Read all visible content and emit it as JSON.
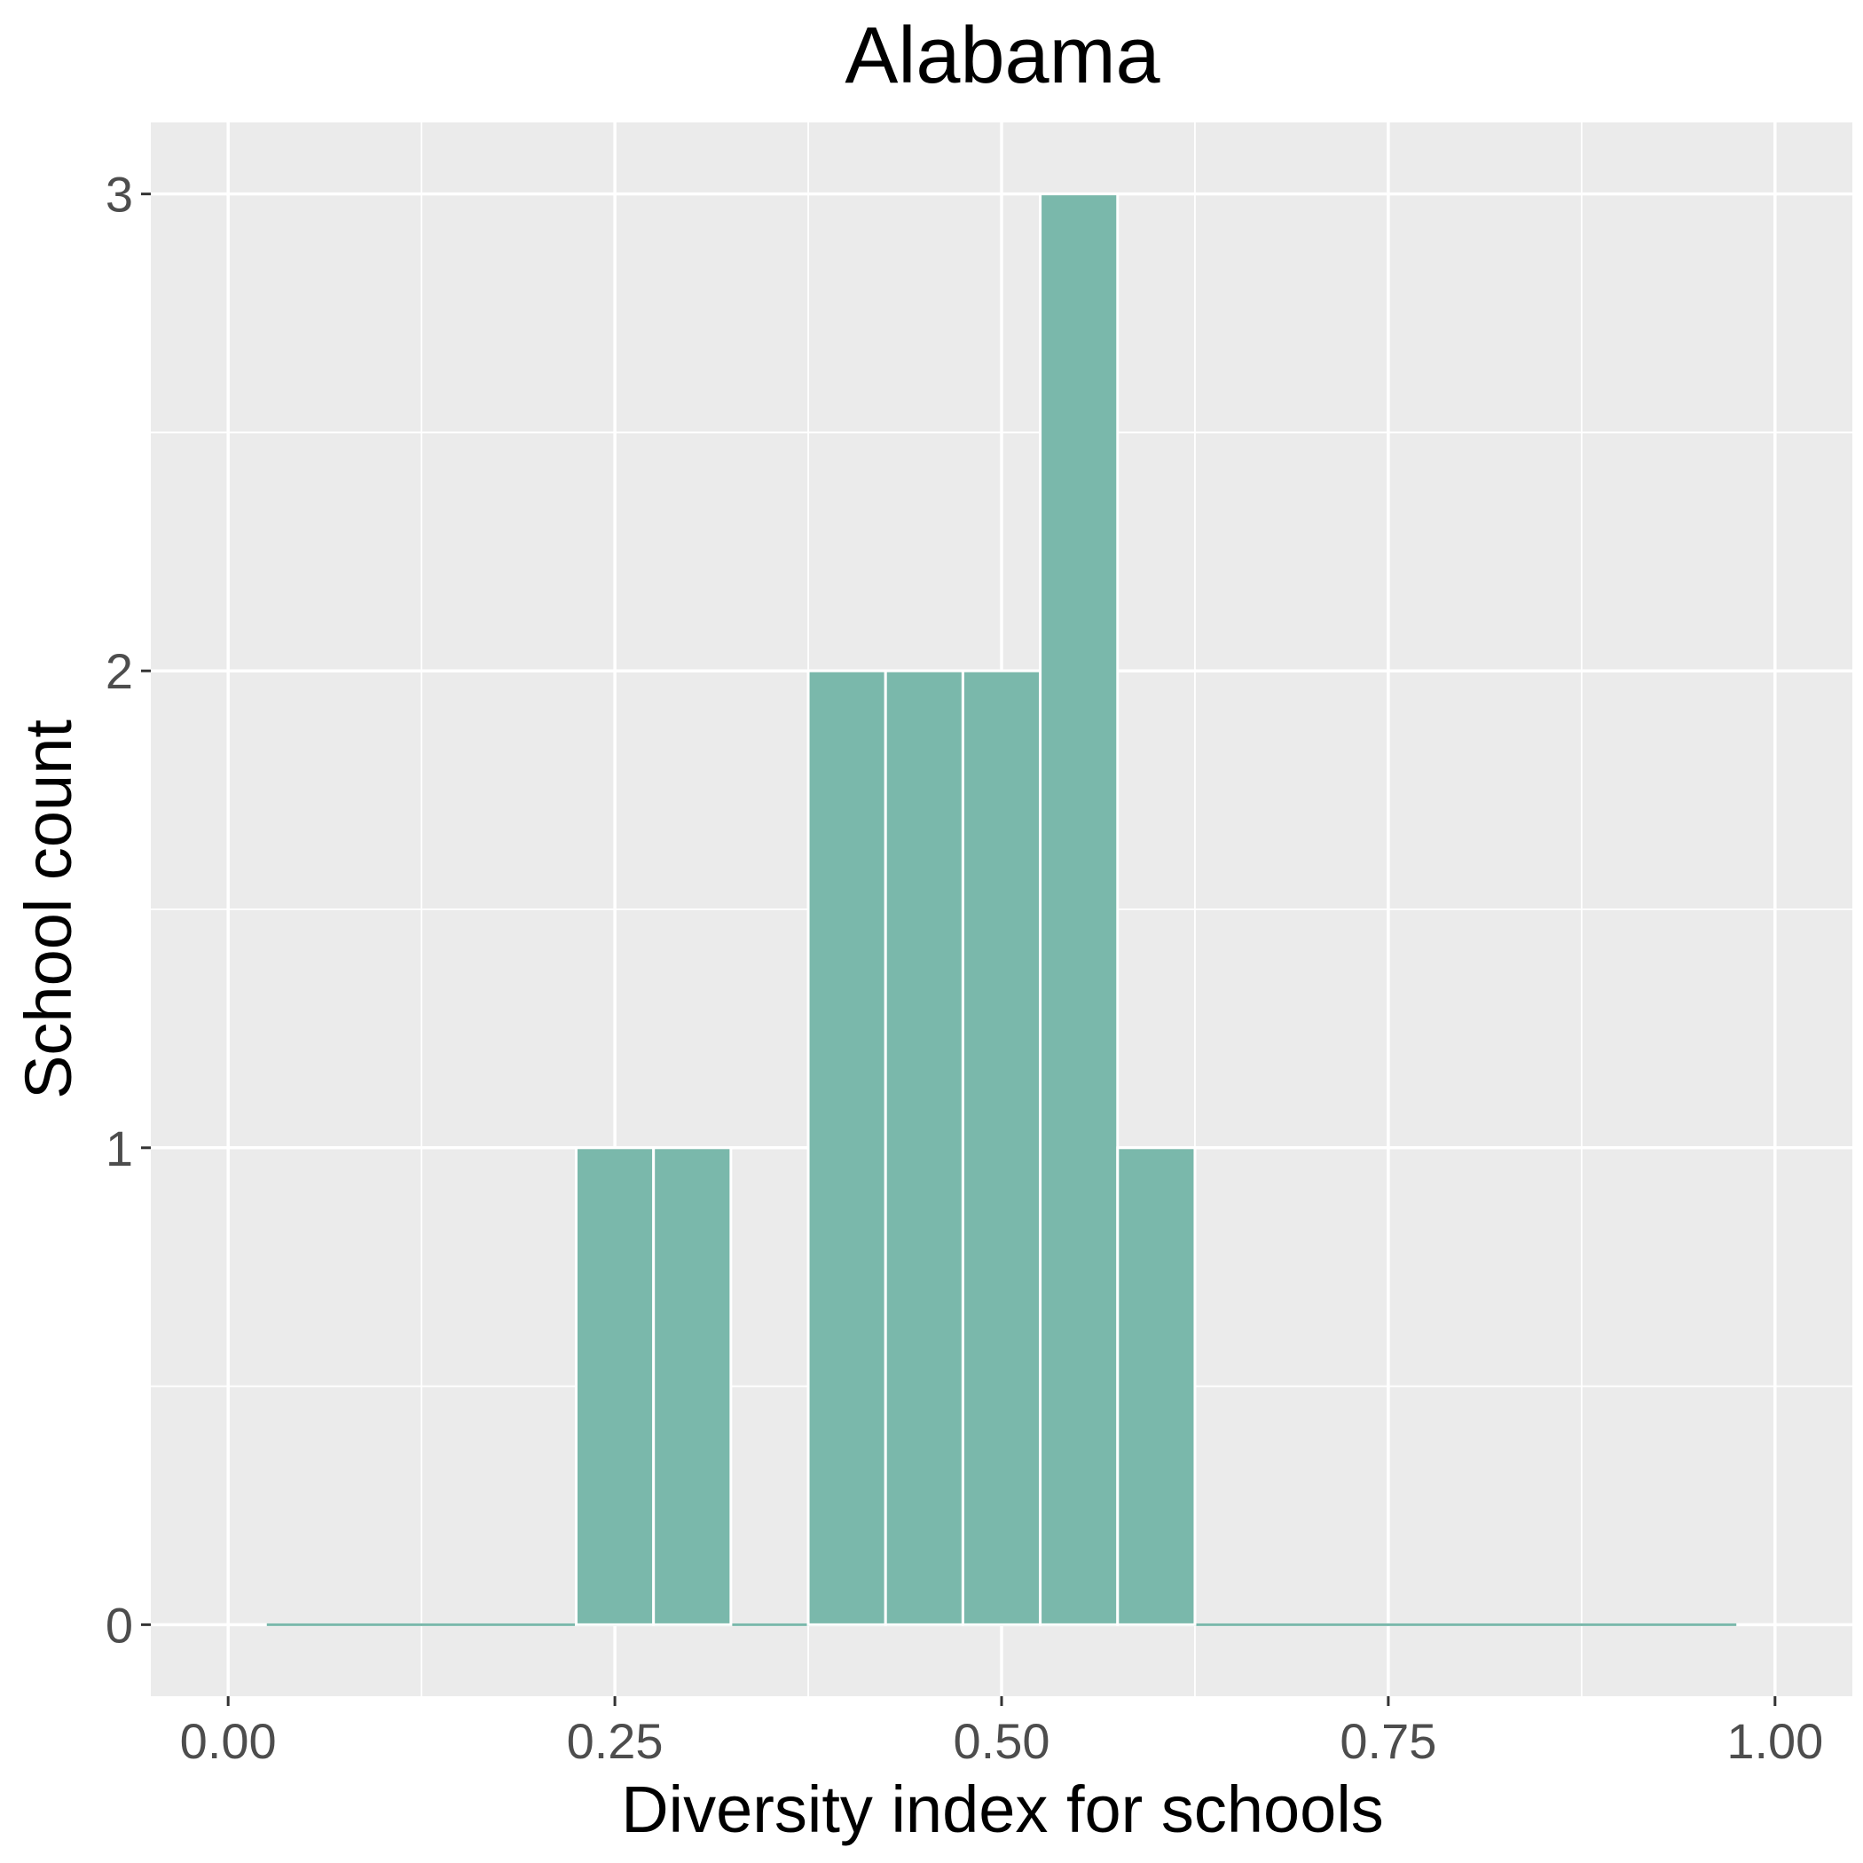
{
  "chart_data": {
    "type": "bar",
    "title": "Alabama",
    "xlabel": "Diversity index for schools",
    "ylabel": "School count",
    "xlim": [
      -0.05,
      1.05
    ],
    "ylim": [
      -0.15,
      3.15
    ],
    "x_ticks": [
      0.0,
      0.25,
      0.5,
      0.75,
      1.0
    ],
    "x_tick_labels": [
      "0.00",
      "0.25",
      "0.50",
      "0.75",
      "1.00"
    ],
    "y_ticks": [
      0,
      1,
      2,
      3
    ],
    "y_tick_labels": [
      "0",
      "1",
      "2",
      "3"
    ],
    "bin_width": 0.05,
    "bins": [
      {
        "x": 0.25,
        "count": 1
      },
      {
        "x": 0.3,
        "count": 1
      },
      {
        "x": 0.4,
        "count": 2
      },
      {
        "x": 0.45,
        "count": 2
      },
      {
        "x": 0.5,
        "count": 2
      },
      {
        "x": 0.55,
        "count": 3
      },
      {
        "x": 0.6,
        "count": 1
      }
    ],
    "baseline_range": [
      0.025,
      0.975
    ],
    "grid": true,
    "colors": {
      "panel": "#ebebeb",
      "bar": "#7ab8ab",
      "grid": "#ffffff"
    }
  }
}
